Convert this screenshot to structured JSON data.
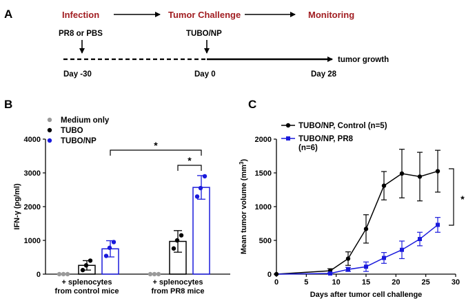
{
  "panels": {
    "a": "A",
    "b": "B",
    "c": "C"
  },
  "timeline": {
    "stages": [
      "Infection",
      "Tumor Challenge",
      "Monitoring"
    ],
    "stage_color": "#a11d21",
    "treatments": [
      "PR8 or PBS",
      "TUBO/NP"
    ],
    "days": [
      "Day -30",
      "Day 0",
      "Day 28"
    ],
    "end_label": "tumor growth"
  },
  "chart_data": [
    {
      "type": "bar",
      "ylabel": "IFN-γ (pg/ml)",
      "ylim": [
        0,
        4000
      ],
      "yticks": [
        0,
        1000,
        2000,
        3000,
        4000
      ],
      "ytick_labels": [
        "0",
        "1000",
        "2000",
        "3000",
        "4000"
      ],
      "groups": [
        [
          "+ splenocytes",
          "from control mice"
        ],
        [
          "+ splenocytes",
          "from PR8 mice"
        ]
      ],
      "legend": {
        "position": "top-left"
      },
      "series": [
        {
          "name": "Medium only",
          "color": "#999999",
          "values": [
            0,
            0
          ],
          "errors": [
            0,
            0
          ],
          "points": [
            [
              0,
              0,
              0
            ],
            [
              0,
              0,
              0
            ]
          ]
        },
        {
          "name": "TUBO",
          "color": "#000000",
          "values": [
            260,
            970
          ],
          "errors": [
            140,
            320
          ],
          "points": [
            [
              120,
              260,
              400
            ],
            [
              760,
              1000,
              1150
            ]
          ]
        },
        {
          "name": "TUBO/NP",
          "color": "#1a1adc",
          "values": [
            750,
            2570
          ],
          "errors": [
            240,
            350
          ],
          "points": [
            [
              540,
              780,
              950
            ],
            [
              2300,
              2550,
              2900
            ]
          ]
        }
      ],
      "significance": [
        "*",
        "*"
      ]
    },
    {
      "type": "line",
      "xlabel": "Days after tumor cell challenge",
      "ylabel": "Mean tumor volume (mm",
      "ylabel_sup": "3",
      "ylabel_end": ")",
      "xlim": [
        0,
        30
      ],
      "ylim": [
        0,
        2000
      ],
      "xticks": [
        0,
        5,
        10,
        15,
        20,
        25,
        30
      ],
      "xtick_labels": [
        "0",
        "5",
        "10",
        "15",
        "20",
        "25",
        "30"
      ],
      "yticks": [
        0,
        500,
        1000,
        1500,
        2000
      ],
      "ytick_labels": [
        "0",
        "500",
        "1000",
        "1500",
        "2000"
      ],
      "legend": {
        "position": "top-left"
      },
      "series": [
        {
          "name": "TUBO/NP, Control (n=5)",
          "color": "#000000",
          "marker": "circle",
          "x": [
            9,
            12,
            15,
            18,
            21,
            24,
            27
          ],
          "y": [
            50,
            230,
            670,
            1310,
            1490,
            1445,
            1525
          ],
          "err": [
            30,
            100,
            210,
            210,
            360,
            360,
            310
          ]
        },
        {
          "name": "TUBO/NP, PR8",
          "name_line2": "(n=6)",
          "color": "#1a1adc",
          "marker": "square",
          "x": [
            9,
            12,
            15,
            18,
            21,
            24,
            27
          ],
          "y": [
            10,
            70,
            110,
            240,
            360,
            520,
            730
          ],
          "err": [
            10,
            30,
            70,
            80,
            130,
            100,
            110
          ]
        }
      ],
      "significance": "*"
    }
  ]
}
